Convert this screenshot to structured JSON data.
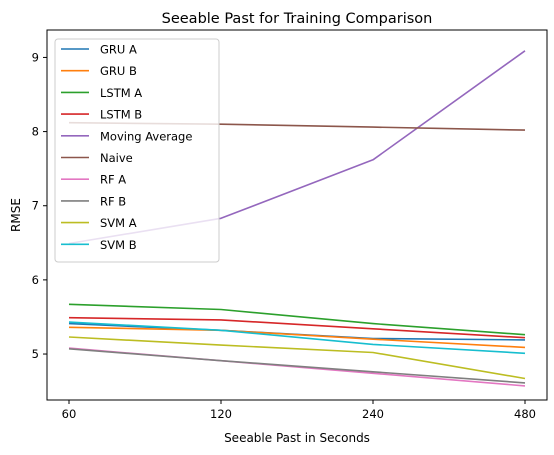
{
  "chart_data": {
    "type": "line",
    "title": "Seeable Past for Training Comparison",
    "xlabel": "Seeable Past in Seconds",
    "ylabel": "RMSE",
    "categories": [
      "60",
      "120",
      "240",
      "480"
    ],
    "ylim": [
      4.38,
      9.37
    ],
    "yticks": [
      5,
      6,
      7,
      8,
      9
    ],
    "grid": false,
    "legend_position": "upper-left",
    "series": [
      {
        "name": "GRU A",
        "color": "#1f77b4",
        "values": [
          5.41,
          5.32,
          5.21,
          5.19
        ]
      },
      {
        "name": "GRU B",
        "color": "#ff7f0e",
        "values": [
          5.36,
          5.32,
          5.2,
          5.09
        ]
      },
      {
        "name": "LSTM A",
        "color": "#2ca02c",
        "values": [
          5.67,
          5.6,
          5.41,
          5.26
        ]
      },
      {
        "name": "LSTM B",
        "color": "#d62728",
        "values": [
          5.49,
          5.46,
          5.34,
          5.22
        ]
      },
      {
        "name": "Moving Average",
        "color": "#9467bd",
        "values": [
          6.49,
          6.83,
          7.62,
          9.09
        ]
      },
      {
        "name": "Naive",
        "color": "#8c564b",
        "values": [
          8.12,
          8.1,
          8.06,
          8.02
        ]
      },
      {
        "name": "RF A",
        "color": "#e377c2",
        "values": [
          5.08,
          4.91,
          4.74,
          4.57
        ]
      },
      {
        "name": "RF B",
        "color": "#7f7f7f",
        "values": [
          5.07,
          4.91,
          4.76,
          4.61
        ]
      },
      {
        "name": "SVM A",
        "color": "#bcbd22",
        "values": [
          5.23,
          5.12,
          5.02,
          4.67
        ]
      },
      {
        "name": "SVM B",
        "color": "#17becf",
        "values": [
          5.43,
          5.32,
          5.13,
          5.01
        ]
      }
    ]
  }
}
